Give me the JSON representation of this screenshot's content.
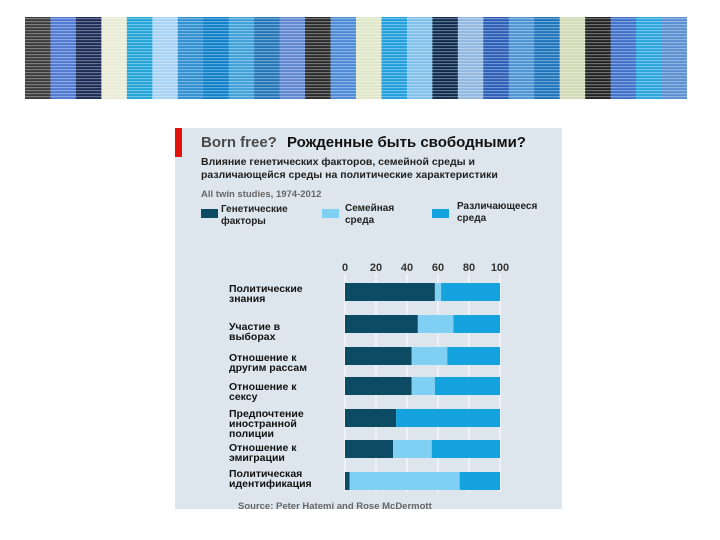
{
  "banner": {
    "colors": [
      "#3a3a3a",
      "#4f78d2",
      "#1b2a57",
      "#e9ebd6",
      "#22a4d8",
      "#a6d2f5",
      "#2e8fd0",
      "#0d7fc9",
      "#3fa0d8",
      "#2274b8",
      "#5f86cf",
      "#2a2a2a",
      "#4b8ad6",
      "#dfe6c9",
      "#1f9edb",
      "#7fc1ea",
      "#0d2a4d",
      "#8fb7df",
      "#2a5db5",
      "#4b93d1",
      "#1c73bc",
      "#d3dab6",
      "#222222",
      "#3e70c9",
      "#2aa6dd",
      "#5a8fd1"
    ]
  },
  "chart": {
    "title_en": "Born free?",
    "title_ru": "Рожденные быть свободными?",
    "subtitle": "Влияние генетических факторов, семейной среды и различающейся среды на политические характеристики",
    "note": "All twin studies, 1974-2012",
    "source": "Source: Peter Hatemi and Rose McDermott",
    "legend": [
      {
        "label": "Генетические\nфакторы",
        "color": "#0d4a63"
      },
      {
        "label": "Семейная\nсреда",
        "color": "#7fd0f3"
      },
      {
        "label": "Различающееся\nсреда",
        "color": "#14a3de"
      }
    ]
  },
  "chart_data": {
    "type": "bar",
    "orientation": "horizontal",
    "stacked": true,
    "categories": [
      "Политические\nзнания",
      "Участие в\nвыборах",
      "Отношение к\nдругим рассам",
      "Отношение к\nсексу",
      "Предпочтение\nиностранной\nполиции",
      "Отношение к\nэмиграции",
      "Политическая\nидентификация"
    ],
    "series": [
      {
        "name": "Генетические факторы",
        "color": "#0d4a63",
        "values": [
          58,
          47,
          43,
          43,
          33,
          31,
          3
        ]
      },
      {
        "name": "Семейная среда",
        "color": "#7fd0f3",
        "values": [
          4,
          23,
          23,
          15,
          0,
          25,
          71
        ]
      },
      {
        "name": "Различающееся среда",
        "color": "#14a3de",
        "values": [
          38,
          30,
          34,
          42,
          67,
          44,
          26
        ]
      }
    ],
    "x_ticks": [
      0,
      20,
      40,
      60,
      80,
      100
    ],
    "xlim": [
      0,
      100
    ],
    "grid": true
  }
}
